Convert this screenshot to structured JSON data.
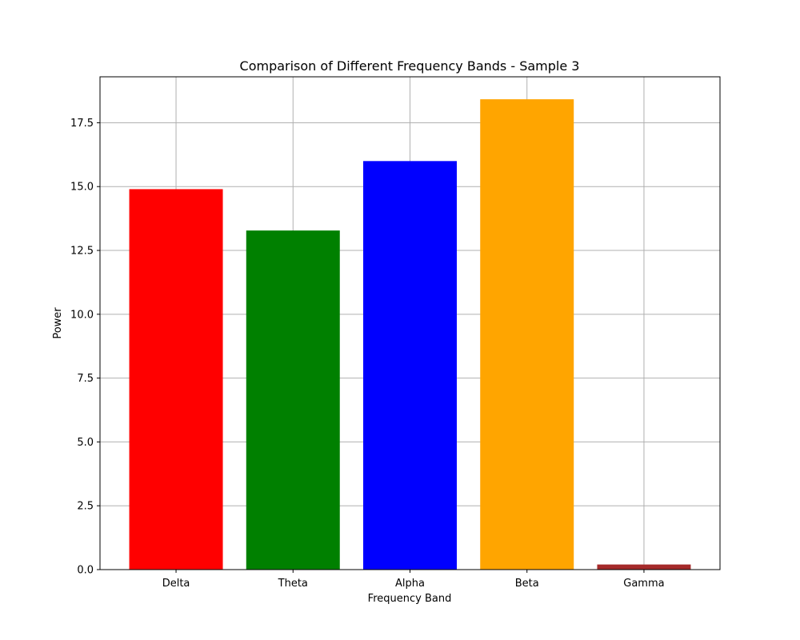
{
  "chart_data": {
    "type": "bar",
    "title": "Comparison of Different Frequency Bands - Sample 3",
    "xlabel": "Frequency Band",
    "ylabel": "Power",
    "categories": [
      "Delta",
      "Theta",
      "Alpha",
      "Beta",
      "Gamma"
    ],
    "values": [
      14.9,
      13.28,
      16.0,
      18.42,
      0.2
    ],
    "colors": [
      "#ff0000",
      "#008000",
      "#0000ff",
      "#ffa500",
      "#a52a2a"
    ],
    "ylim": [
      0,
      19.3
    ],
    "yticks": [
      0.0,
      2.5,
      5.0,
      7.5,
      10.0,
      12.5,
      15.0,
      17.5
    ],
    "ytick_labels": [
      "0.0",
      "2.5",
      "5.0",
      "7.5",
      "10.0",
      "12.5",
      "15.0",
      "17.5"
    ],
    "grid": true,
    "legend": "none"
  }
}
